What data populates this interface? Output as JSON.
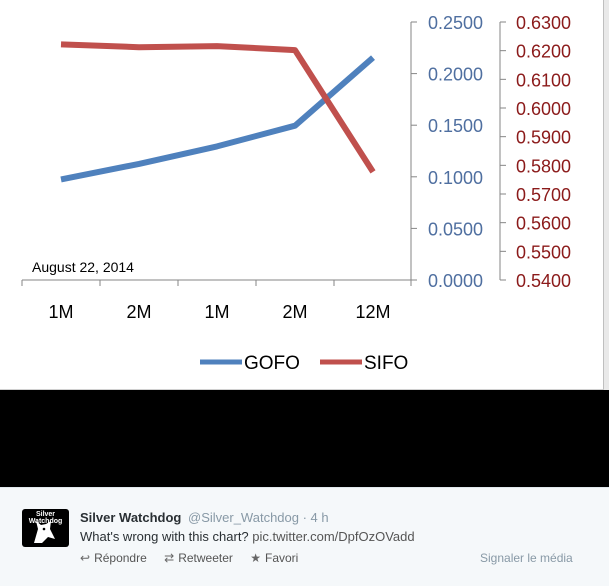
{
  "chart_data": {
    "type": "line",
    "categories": [
      "1M",
      "2M",
      "1M",
      "2M",
      "12M"
    ],
    "annotation": "August 22, 2014",
    "series": [
      {
        "name": "GOFO",
        "axis": "left",
        "color": "#4f81bd",
        "values": [
          0.0975,
          0.1125,
          0.1295,
          0.1495,
          0.2155
        ]
      },
      {
        "name": "SIFO",
        "axis": "right",
        "color": "#c0504d",
        "values": [
          0.6222,
          0.6212,
          0.6216,
          0.6202,
          0.5777
        ]
      }
    ],
    "y_left": {
      "min": 0.0,
      "max": 0.25,
      "ticks": [
        "0.0000",
        "0.0500",
        "0.1000",
        "0.1500",
        "0.2000",
        "0.2500"
      ],
      "color": "#4f6fa0"
    },
    "y_right": {
      "min": 0.54,
      "max": 0.63,
      "ticks": [
        "0.5400",
        "0.5500",
        "0.5600",
        "0.5700",
        "0.5800",
        "0.5900",
        "0.6000",
        "0.6100",
        "0.6200",
        "0.6300"
      ],
      "color": "#8b1a1a"
    },
    "legend_position": "bottom",
    "grid": false
  },
  "tweet": {
    "name": "Silver Watchdog",
    "handle": "@Silver_Watchdog",
    "time": "· 4 h",
    "text": "What's wrong with this chart?",
    "link": "pic.twitter.com/DpfOzOVadd",
    "avatar_label": "Silver Watchdog",
    "actions": {
      "reply": "Répondre",
      "retweet": "Retweeter",
      "favorite": "Favori"
    },
    "report": "Signaler le média"
  }
}
